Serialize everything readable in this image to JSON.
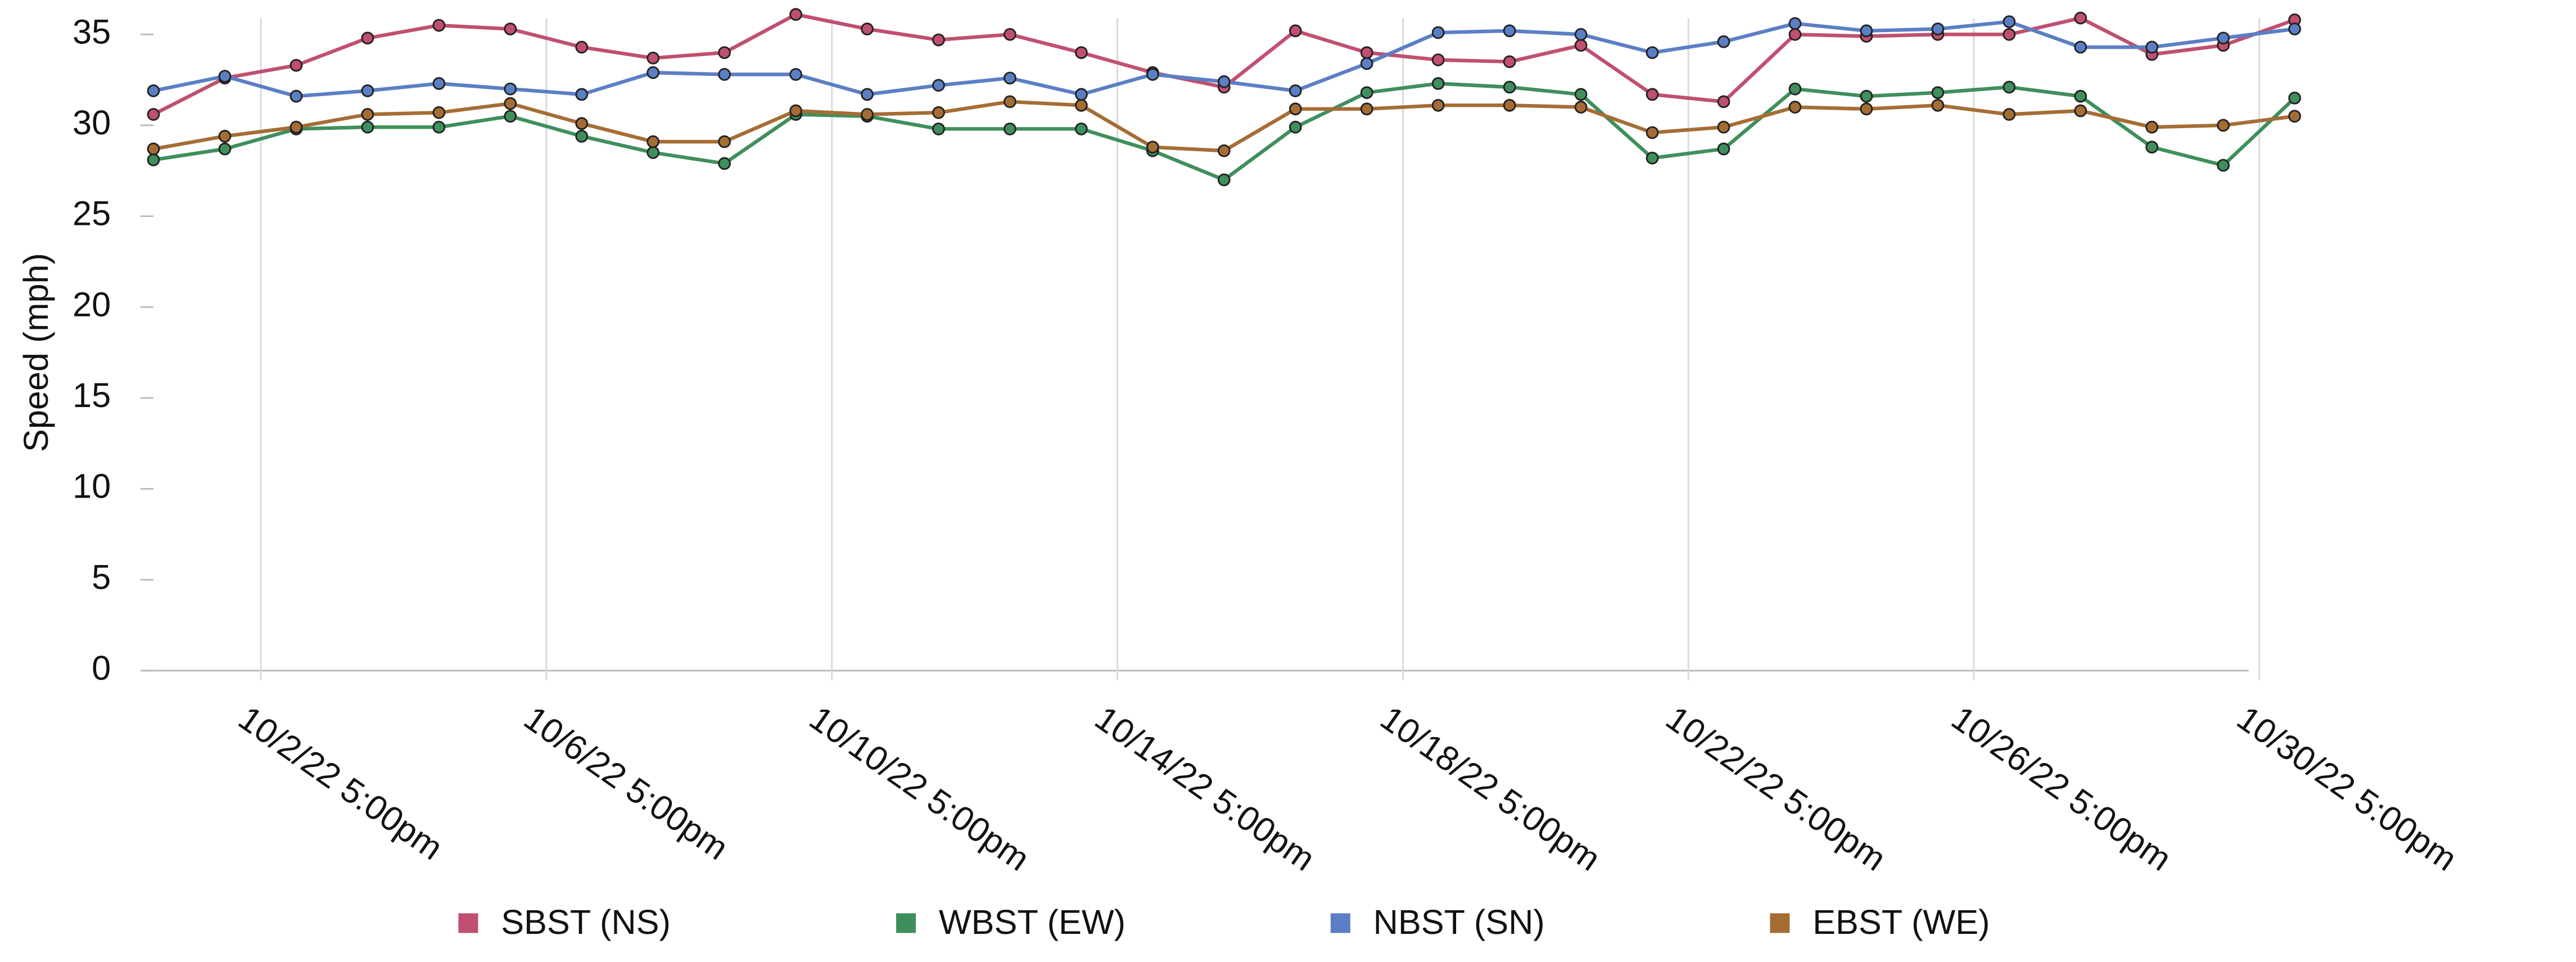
{
  "chart_data": {
    "type": "line",
    "y_label": "Speed (mph)",
    "categories": [
      null,
      "10/2/22 5:00pm",
      null,
      null,
      null,
      "10/6/22 5:00pm",
      null,
      null,
      null,
      "10/10/22 5:00pm",
      null,
      null,
      null,
      "10/14/22 5:00pm",
      null,
      null,
      null,
      "10/18/22 5:00pm",
      null,
      null,
      null,
      "10/22/22 5:00pm",
      null,
      null,
      null,
      "10/26/22 5:00pm",
      null,
      null,
      null,
      "10/30/22 5:00pm",
      null
    ],
    "series": [
      {
        "name": "SBST (NS)",
        "color": "#c0506f",
        "values": [
          30.6,
          32.6,
          33.3,
          34.8,
          35.5,
          35.3,
          34.3,
          33.7,
          34.0,
          36.1,
          35.3,
          34.7,
          35.0,
          34.0,
          32.9,
          32.1,
          35.2,
          34.0,
          33.6,
          33.5,
          34.4,
          31.7,
          31.3,
          35.0,
          34.9,
          35.0,
          35.0,
          35.9,
          33.9,
          34.4,
          35.8
        ]
      },
      {
        "name": "WBST (EW)",
        "color": "#3f8f5c",
        "values": [
          28.1,
          28.7,
          29.8,
          29.9,
          29.9,
          30.5,
          29.4,
          28.5,
          27.9,
          30.6,
          30.5,
          29.8,
          29.8,
          29.8,
          28.6,
          27.0,
          29.9,
          31.8,
          32.3,
          32.1,
          31.7,
          28.2,
          28.7,
          32.0,
          31.6,
          31.8,
          32.1,
          31.6,
          28.8,
          27.8,
          31.5
        ]
      },
      {
        "name": "NBST (SN)",
        "color": "#5b7fc4",
        "values": [
          31.9,
          32.7,
          31.6,
          31.9,
          32.3,
          32.0,
          31.7,
          32.9,
          32.8,
          32.8,
          31.7,
          32.2,
          32.6,
          31.7,
          32.8,
          32.4,
          31.9,
          33.4,
          35.1,
          35.2,
          35.0,
          34.0,
          34.6,
          35.6,
          35.2,
          35.3,
          35.7,
          34.3,
          34.3,
          34.8,
          35.3
        ]
      },
      {
        "name": "EBST (WE)",
        "color": "#a56d34",
        "values": [
          28.7,
          29.4,
          29.9,
          30.6,
          30.7,
          31.2,
          30.1,
          29.1,
          29.1,
          30.8,
          30.6,
          30.7,
          31.3,
          31.1,
          28.8,
          28.6,
          30.9,
          30.9,
          31.1,
          31.1,
          31.0,
          29.6,
          29.9,
          31.0,
          30.9,
          31.1,
          30.6,
          30.8,
          29.9,
          30.0,
          30.5
        ]
      }
    ],
    "ylim": [
      0,
      35
    ],
    "yticks": [
      0,
      5,
      10,
      15,
      20,
      25,
      30,
      35
    ],
    "grid": true,
    "legend": "bottom"
  }
}
